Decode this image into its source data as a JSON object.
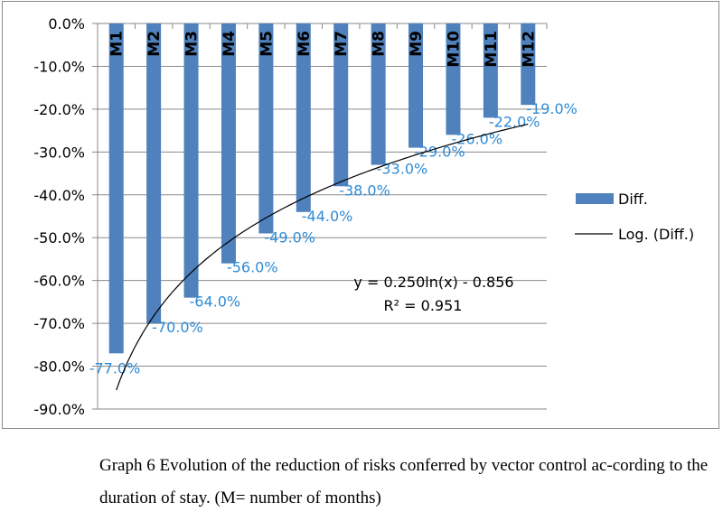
{
  "chart_data": {
    "type": "bar",
    "categories": [
      "M1",
      "M2",
      "M3",
      "M4",
      "M5",
      "M6",
      "M7",
      "M8",
      "M9",
      "M10",
      "M11",
      "M12"
    ],
    "series": [
      {
        "name": "Diff.",
        "values": [
          -0.77,
          -0.7,
          -0.64,
          -0.56,
          -0.49,
          -0.44,
          -0.38,
          -0.33,
          -0.29,
          -0.26,
          -0.22,
          -0.19
        ],
        "color": "#4f81bd"
      }
    ],
    "data_labels": [
      "-77.0%",
      "-70.0%",
      "-64.0%",
      "-56.0%",
      "-49.0%",
      "-44.0%",
      "-38.0%",
      "-33.0%",
      "-29.0%",
      "-26.0%",
      "-22.0%",
      "-19.0%"
    ],
    "trendline": {
      "name": "Log. (Diff.)",
      "type": "logarithmic",
      "a": 0.25,
      "b": -0.856,
      "equation": "y = 0.250ln(x) - 0.856",
      "r2": "R² = 0.951",
      "color": "#000000"
    },
    "ylim": [
      -0.9,
      0
    ],
    "yticks": [
      "0.0%",
      "-10.0%",
      "-20.0%",
      "-30.0%",
      "-40.0%",
      "-50.0%",
      "-60.0%",
      "-70.0%",
      "-80.0%",
      "-90.0%"
    ],
    "grid": true,
    "legend": "right",
    "label_color": "#2e8bd6"
  },
  "caption": "Graph 6 Evolution of the reduction of risks conferred by vector control ac-cording to the duration of stay. (M= number of months)"
}
